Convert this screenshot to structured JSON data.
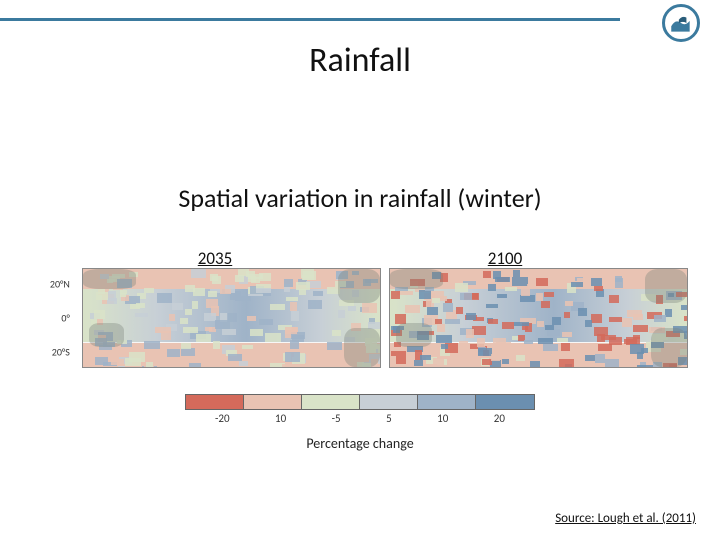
{
  "header": {
    "line_color": "#3b7a9e",
    "logo_primary": "#3b7a9e",
    "logo_accent": "#2a5d7a"
  },
  "title": "Rainfall",
  "subtitle": "Spatial variation in rainfall (winter)",
  "panels": {
    "left_label": "2035",
    "right_label": "2100",
    "y_ticks": [
      "20°N",
      "0°",
      "20°S"
    ],
    "map_bg": "#f7f7f7",
    "map_border": "#888"
  },
  "legend": {
    "colors": [
      "#d46a5b",
      "#e9c3b3",
      "#d9e3c8",
      "#c7cfd6",
      "#9fb3c8",
      "#6b8fb0"
    ],
    "ticks": [
      "-20",
      "10",
      "-5",
      "5",
      "10",
      "20"
    ],
    "title": "Percentage change",
    "border": "#666"
  },
  "source": "Source: Lough et al. (2011)",
  "map_style": {
    "c_red": "#d46a5b",
    "c_pink": "#e9c3b3",
    "c_green": "#d9e3c8",
    "c_ltblue": "#c7cfd6",
    "c_mblue": "#9fb3c8",
    "c_dblue": "#6b8fb0",
    "band_height_pct": 55,
    "band_top_pct": 20
  }
}
